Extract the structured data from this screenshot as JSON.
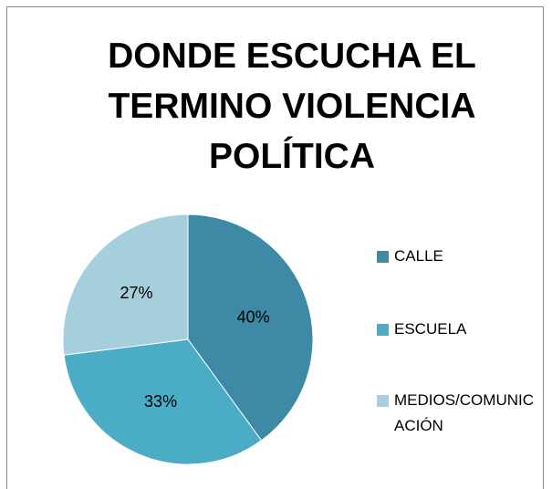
{
  "chart_data": {
    "type": "pie",
    "title": "DONDE ESCUCHA EL TERMINO VIOLENCIA POLÍTICA",
    "categories": [
      "CALLE",
      "ESCUELA",
      "MEDIOS/COMUNICACIÓN"
    ],
    "values": [
      40,
      33,
      27
    ],
    "value_labels": [
      "40%",
      "33%",
      "27%"
    ],
    "colors": [
      "#3e8aa6",
      "#4bacc6",
      "#a5cfdc"
    ],
    "legend": "right"
  }
}
